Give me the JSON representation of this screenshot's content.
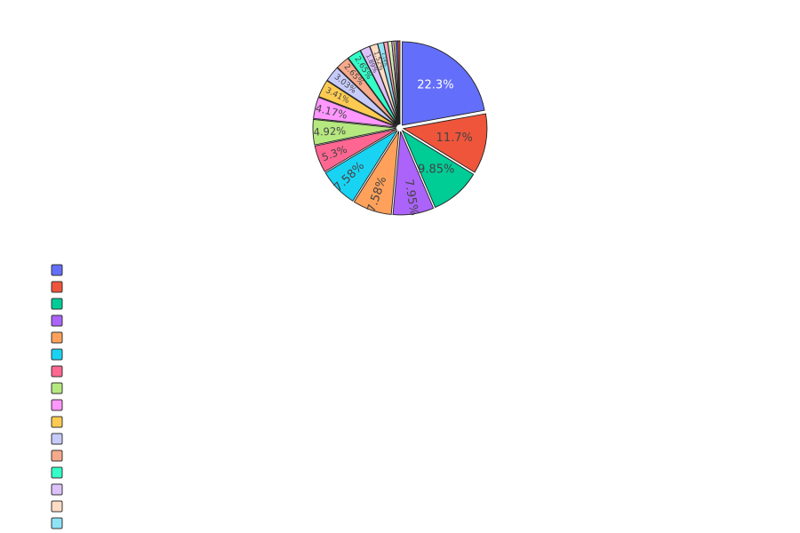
{
  "chart_data": {
    "type": "pie",
    "legend_position": "left-bottom",
    "slices": [
      {
        "value": 22.3,
        "label": "22.3%",
        "color": "#636efa"
      },
      {
        "value": 11.7,
        "label": "11.7%",
        "color": "#ef553b"
      },
      {
        "value": 9.85,
        "label": "9.85%",
        "color": "#00cc96"
      },
      {
        "value": 7.95,
        "label": "7.95%",
        "color": "#ab63fa"
      },
      {
        "value": 7.58,
        "label": "7.58%",
        "color": "#ffa15a"
      },
      {
        "value": 7.58,
        "label": "7.58%",
        "color": "#19d3f3"
      },
      {
        "value": 5.3,
        "label": "5.3%",
        "color": "#ff6692"
      },
      {
        "value": 4.92,
        "label": "4.92%",
        "color": "#b6e880"
      },
      {
        "value": 4.17,
        "label": "4.17%",
        "color": "#ff97ff"
      },
      {
        "value": 3.41,
        "label": "3.41%",
        "color": "#fecb52"
      },
      {
        "value": 3.03,
        "label": "3.03%",
        "color": "#c6cbfb"
      },
      {
        "value": 2.65,
        "label": "2.65%",
        "color": "#f7a98b"
      },
      {
        "value": 2.65,
        "label": "2.65%",
        "color": "#33ffc8"
      },
      {
        "value": 1.89,
        "label": "1.89%",
        "color": "#dcc1fb"
      },
      {
        "value": 1.52,
        "label": "1.52%",
        "color": "#ffdcc4"
      },
      {
        "value": 1.14,
        "label": "1.14%",
        "color": "#8ee3f5"
      },
      {
        "value": 0.76,
        "label": "",
        "color": "#ff9fb7"
      },
      {
        "value": 0.76,
        "label": "",
        "color": "#d5f1bc"
      },
      {
        "value": 0.38,
        "label": "",
        "color": "#ffc8ff"
      },
      {
        "value": 0.38,
        "label": "",
        "color": "#fee29d"
      },
      {
        "value": 0.38,
        "label": "",
        "color": "#636efa"
      },
      {
        "value": 0.38,
        "label": "",
        "color": "#ef553b"
      }
    ],
    "legend_items": [
      {
        "label": "",
        "color": "#636efa"
      },
      {
        "label": "",
        "color": "#ef553b"
      },
      {
        "label": "",
        "color": "#00cc96"
      },
      {
        "label": "",
        "color": "#ab63fa"
      },
      {
        "label": "",
        "color": "#ffa15a"
      },
      {
        "label": "",
        "color": "#19d3f3"
      },
      {
        "label": "",
        "color": "#ff6692"
      },
      {
        "label": "",
        "color": "#b6e880"
      },
      {
        "label": "",
        "color": "#ff97ff"
      },
      {
        "label": "",
        "color": "#fecb52"
      },
      {
        "label": "",
        "color": "#c6cbfb"
      },
      {
        "label": "",
        "color": "#f7a98b"
      },
      {
        "label": "",
        "color": "#33ffc8"
      },
      {
        "label": "",
        "color": "#dcc1fb"
      },
      {
        "label": "",
        "color": "#ffdcc4"
      },
      {
        "label": "",
        "color": "#8ee3f5"
      }
    ]
  }
}
